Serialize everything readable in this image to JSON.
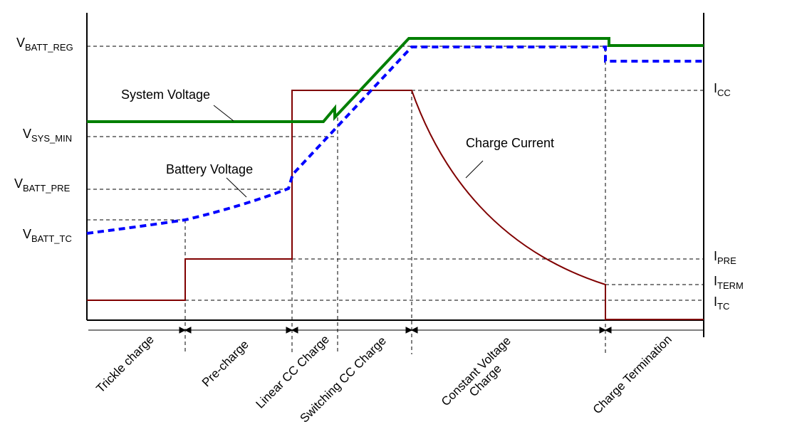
{
  "colors": {
    "system_voltage": "#007f00",
    "battery_voltage": "#0000ff",
    "charge_current": "#800000",
    "axes": "#000000"
  },
  "voltage_labels": {
    "vbatt_reg": {
      "main": "V",
      "sub": "BATT_REG"
    },
    "vsys_min": {
      "main": "V",
      "sub": "SYS_MIN"
    },
    "vbatt_pre": {
      "main": "V",
      "sub": "BATT_PRE"
    },
    "vbatt_tc": {
      "main": "V",
      "sub": "BATT_TC"
    }
  },
  "current_labels": {
    "icc": {
      "main": "I",
      "sub": "CC"
    },
    "ipre": {
      "main": "I",
      "sub": "PRE"
    },
    "iterm": {
      "main": "I",
      "sub": "TERM"
    },
    "itc": {
      "main": "I",
      "sub": "TC"
    }
  },
  "curve_labels": {
    "system_voltage": "System Voltage",
    "battery_voltage": "Battery Voltage",
    "charge_current": "Charge Current"
  },
  "phases": [
    "Trickle charge",
    "Pre-charge",
    "Linear CC Charge",
    "Switching CC Charge",
    "Constant Voltage",
    "Charge",
    "Charge Termination"
  ]
}
